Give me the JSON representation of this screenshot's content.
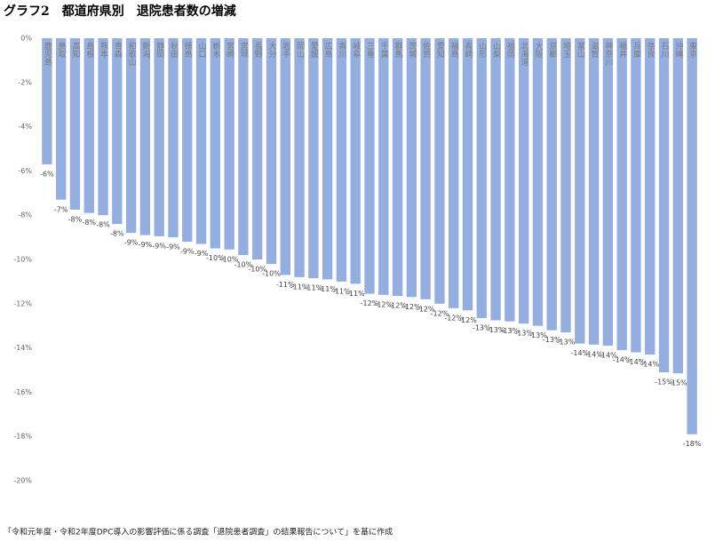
{
  "chart_data": {
    "type": "bar",
    "title": "グラフ2　都道府県別　退院患者数の増減",
    "note": "「令和元年度・令和2年度DPC導入の影響評価に係る調査「退院患者調査」の結果報告について」を基に作成",
    "categories": [
      "鹿児島",
      "鳥取",
      "高知",
      "島根",
      "熊本",
      "青森",
      "和歌山",
      "新潟",
      "静岡",
      "秋田",
      "徳島",
      "山口",
      "栃木",
      "宮崎",
      "宮城",
      "長野",
      "大分",
      "岩手",
      "岡山",
      "愛媛",
      "広島",
      "香川",
      "岐阜",
      "三重",
      "千葉",
      "群馬",
      "茨城",
      "佐賀",
      "愛知",
      "福島",
      "長崎",
      "山形",
      "山梨",
      "福岡",
      "北海道",
      "大阪",
      "京都",
      "埼玉",
      "富山",
      "滋賀",
      "神奈川",
      "福井",
      "兵庫",
      "奈良",
      "石川",
      "沖縄",
      "東京"
    ],
    "values": [
      -5.7,
      -7.3,
      -7.75,
      -7.9,
      -8.0,
      -8.4,
      -8.8,
      -8.9,
      -8.95,
      -9.0,
      -9.2,
      -9.3,
      -9.5,
      -9.55,
      -9.8,
      -10.0,
      -10.2,
      -10.7,
      -10.8,
      -10.85,
      -10.9,
      -11.0,
      -11.1,
      -11.55,
      -11.6,
      -11.65,
      -11.7,
      -11.8,
      -12.0,
      -12.2,
      -12.3,
      -12.65,
      -12.75,
      -12.8,
      -12.9,
      -13.0,
      -13.2,
      -13.3,
      -13.8,
      -13.85,
      -13.9,
      -14.1,
      -14.2,
      -14.3,
      -15.1,
      -15.15,
      -17.9
    ],
    "value_labels": [
      "-6%",
      "-7%",
      "-8%",
      "-8%",
      "-8%",
      "-8%",
      "-9%",
      "-9%",
      "-9%",
      "-9%",
      "-9%",
      "-9%",
      "-10%",
      "-10%",
      "-10%",
      "-10%",
      "-10%",
      "-11%",
      "-11%",
      "-11%",
      "-11%",
      "-11%",
      "-11%",
      "-12%",
      "-12%",
      "-12%",
      "-12%",
      "-12%",
      "-12%",
      "-12%",
      "-12%",
      "-13%",
      "-13%",
      "-13%",
      "-13%",
      "-13%",
      "-13%",
      "-13%",
      "-14%",
      "-14%",
      "-14%",
      "-14%",
      "-14%",
      "-14%",
      "-15%",
      "-15%",
      "-18%"
    ],
    "color": "#94aee0",
    "ylim": [
      0,
      -20
    ],
    "yticks": [
      {
        "value": 0,
        "label": "0%"
      },
      {
        "value": -2,
        "label": "-2%"
      },
      {
        "value": -4,
        "label": "-4%"
      },
      {
        "value": -6,
        "label": "-6%"
      },
      {
        "value": -8,
        "label": "-8%"
      },
      {
        "value": -10,
        "label": "-10%"
      },
      {
        "value": -12,
        "label": "-12%"
      },
      {
        "value": -14,
        "label": "-14%"
      },
      {
        "value": -16,
        "label": "-16%"
      },
      {
        "value": -18,
        "label": "-18%"
      },
      {
        "value": -20,
        "label": "-20%"
      }
    ],
    "grid": false
  }
}
